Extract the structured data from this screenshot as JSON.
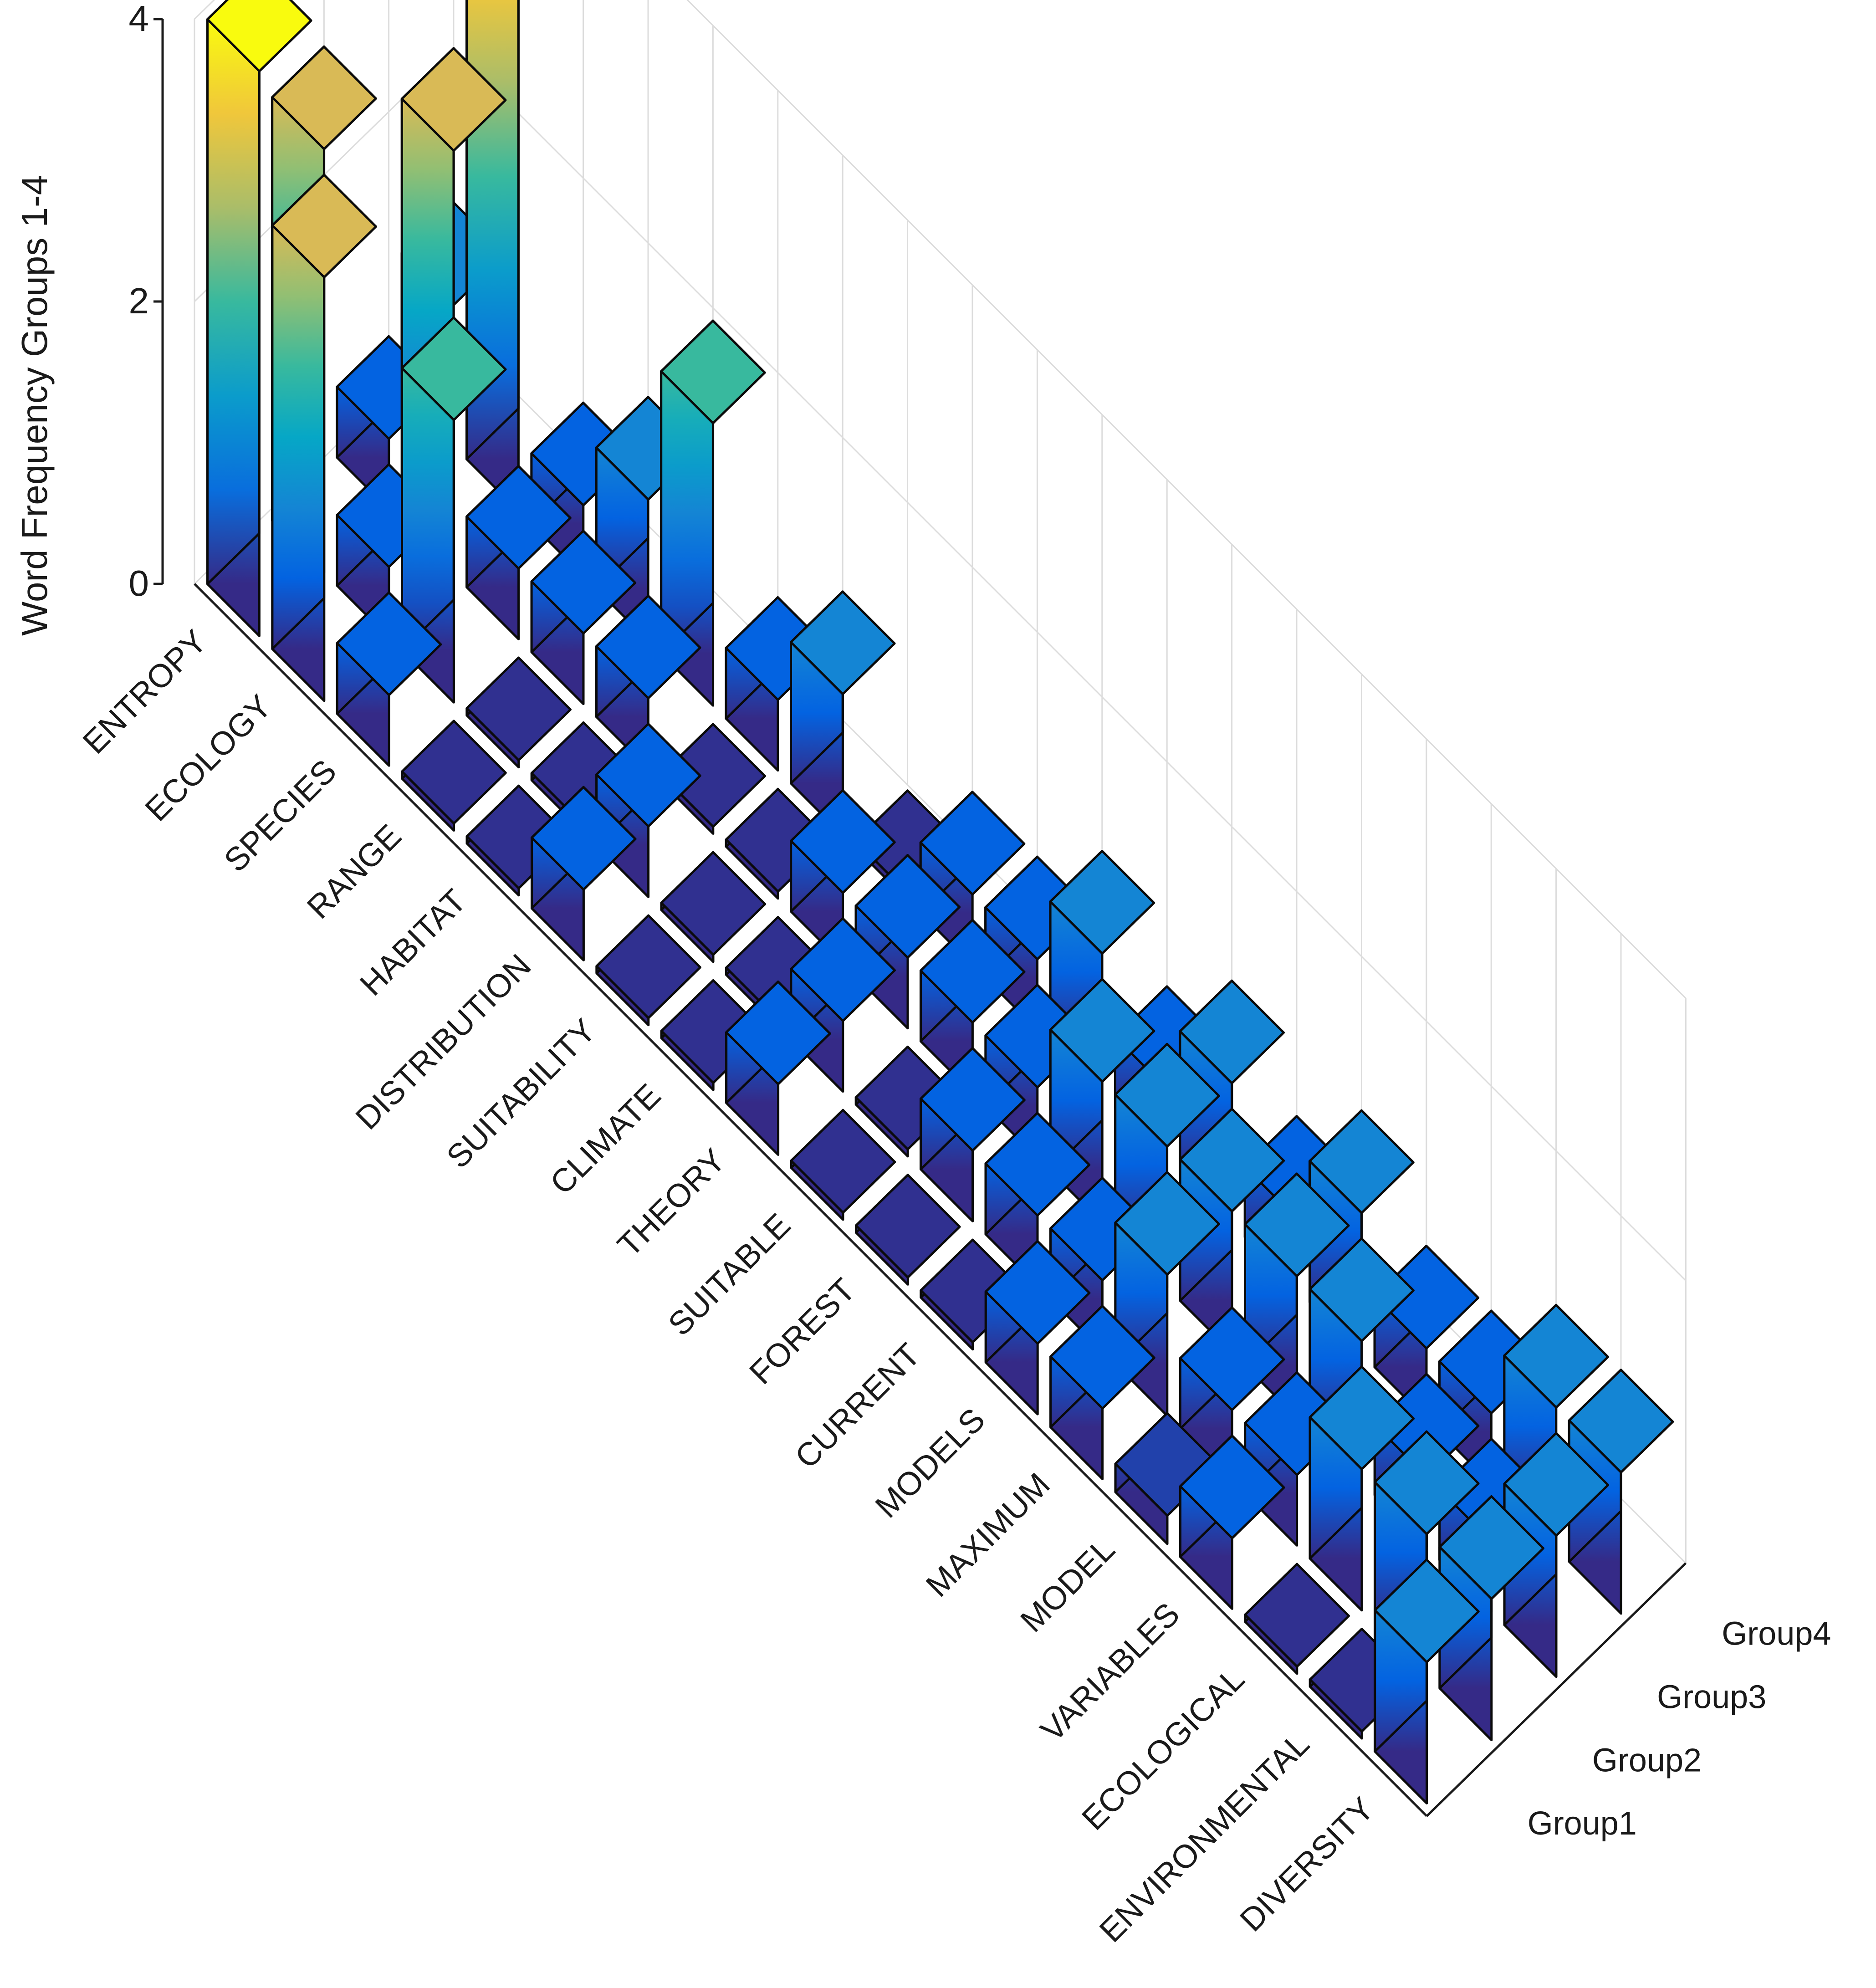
{
  "chart_data": {
    "type": "bar3d",
    "title": "",
    "zlabel": "Word Frequency Groups 1-4",
    "zlim": [
      0,
      4
    ],
    "z_ticks": [
      "0",
      "2",
      "4"
    ],
    "categories": [
      "ENTROPY",
      "ECOLOGY",
      "SPECIES",
      "RANGE",
      "HABITAT",
      "DISTRIBUTION",
      "SUITABILITY",
      "CLIMATE",
      "THEORY",
      "SUITABLE",
      "FOREST",
      "CURRENT",
      "MODELS",
      "MAXIMUM",
      "MODEL",
      "VARIABLES",
      "ECOLOGICAL",
      "ENVIRONMENTAL",
      "DIVERSITY"
    ],
    "groups": [
      "Group1",
      "Group2",
      "Group3",
      "Group4"
    ],
    "series": [
      {
        "name": "Group1",
        "values": [
          4.0,
          3.0,
          0.5,
          0.05,
          0.05,
          0.5,
          0.05,
          0.05,
          0.5,
          0.05,
          0.05,
          0.05,
          0.5,
          0.5,
          0.2,
          0.5,
          0.05,
          0.05,
          1.0
        ]
      },
      {
        "name": "Group2",
        "values": [
          3.0,
          0.5,
          2.0,
          0.05,
          0.05,
          0.5,
          0.05,
          0.05,
          0.5,
          0.05,
          0.5,
          0.5,
          0.5,
          1.0,
          0.5,
          0.5,
          1.0,
          1.0,
          1.0
        ]
      },
      {
        "name": "Group3",
        "values": [
          0.5,
          3.0,
          0.5,
          0.5,
          0.5,
          0.05,
          0.05,
          0.5,
          0.5,
          0.5,
          0.5,
          1.0,
          1.0,
          1.0,
          1.0,
          1.0,
          0.5,
          0.5,
          1.0
        ]
      },
      {
        "name": "Group4",
        "values": [
          1.0,
          4.0,
          0.5,
          1.0,
          2.0,
          0.5,
          1.0,
          0.05,
          0.5,
          0.5,
          1.0,
          0.5,
          1.0,
          0.5,
          1.0,
          0.5,
          0.5,
          1.0,
          1.0
        ]
      }
    ],
    "colormap": "parula",
    "colormap_stops": [
      "#352a87",
      "#0363e1",
      "#1485d4",
      "#06a7c6",
      "#38b99e",
      "#92bf73",
      "#d9ba56",
      "#fcce2e",
      "#f9fb0e"
    ]
  }
}
